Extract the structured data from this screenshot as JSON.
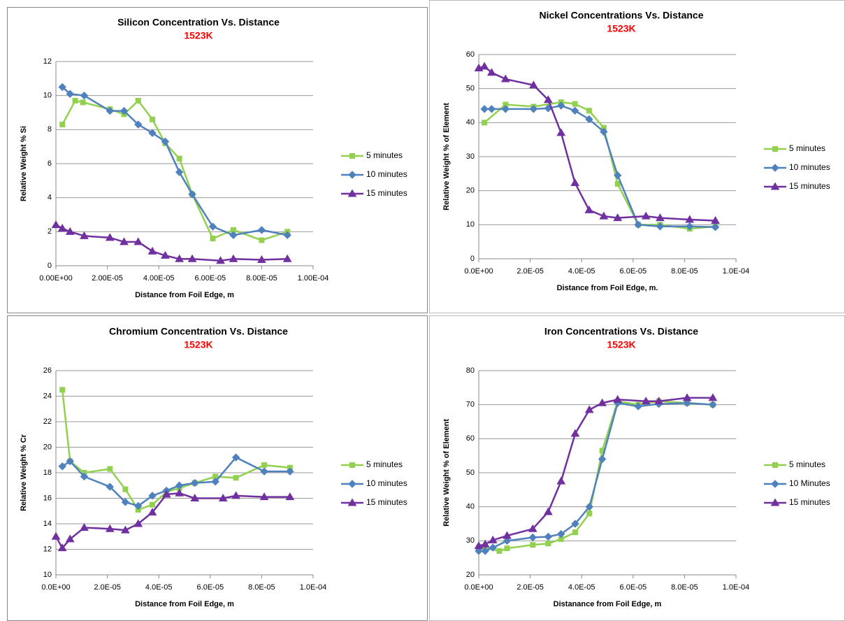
{
  "chart_data": [
    {
      "type": "line",
      "title": "Silicon Concentration Vs. Distance",
      "subtitle": "1523K",
      "x_label": "Distance from Foil Edge, m",
      "y_label": "Relative Weight % Si",
      "xlim": [
        0,
        0.0001
      ],
      "xticks": [
        {
          "value": 0,
          "label": "0.00E+00"
        },
        {
          "value": 2e-05,
          "label": "2.00E-05"
        },
        {
          "value": 4e-05,
          "label": "4.00E-05"
        },
        {
          "value": 6e-05,
          "label": "6.00E-05"
        },
        {
          "value": 8e-05,
          "label": "8.00E-05"
        },
        {
          "value": 0.0001,
          "label": "1.00E-04"
        }
      ],
      "ylim": [
        0,
        12
      ],
      "yticks": [
        0,
        2,
        4,
        6,
        8,
        10,
        12
      ],
      "grid": true,
      "series": [
        {
          "name": "5 minutes",
          "color": "#92d050",
          "marker": "square",
          "x": [
            2.5e-06,
            7.5e-06,
            1.05e-05,
            2.1e-05,
            2.65e-05,
            3.2e-05,
            3.75e-05,
            4.25e-05,
            4.8e-05,
            5.3e-05,
            6.1e-05,
            6.9e-05,
            8e-05,
            9e-05
          ],
          "values": [
            8.3,
            9.7,
            9.6,
            9.2,
            8.9,
            9.7,
            8.6,
            7.2,
            6.3,
            4.2,
            1.6,
            2.1,
            1.5,
            2.0
          ]
        },
        {
          "name": "10 minutes",
          "color": "#4f81bd",
          "marker": "diamond",
          "x": [
            2.5e-06,
            5.5e-06,
            1.1e-05,
            2.1e-05,
            2.65e-05,
            3.2e-05,
            3.75e-05,
            4.25e-05,
            4.8e-05,
            5.3e-05,
            6.1e-05,
            6.9e-05,
            8e-05,
            9e-05
          ],
          "values": [
            10.5,
            10.1,
            10.0,
            9.1,
            9.1,
            8.3,
            7.8,
            7.3,
            5.5,
            4.2,
            2.3,
            1.8,
            2.1,
            1.8
          ]
        },
        {
          "name": "15 minutes",
          "color": "#7030a0",
          "marker": "triangle",
          "x": [
            0,
            2.5e-06,
            5.5e-06,
            1.1e-05,
            2.1e-05,
            2.65e-05,
            3.2e-05,
            3.75e-05,
            4.25e-05,
            4.8e-05,
            5.3e-05,
            6.4e-05,
            6.9e-05,
            8e-05,
            9e-05
          ],
          "values": [
            2.4,
            2.2,
            2.0,
            1.75,
            1.65,
            1.4,
            1.4,
            0.85,
            0.6,
            0.4,
            0.4,
            0.3,
            0.4,
            0.35,
            0.4
          ]
        }
      ]
    },
    {
      "type": "line",
      "title": "Nickel Concentrations Vs. Distance",
      "subtitle": "1523K",
      "x_label": "Distance from Foil Edge, m.",
      "y_label": "Relative Weight % of Element",
      "xlim": [
        0,
        0.0001
      ],
      "xticks": [
        {
          "value": 0,
          "label": "0.0E+00"
        },
        {
          "value": 2e-05,
          "label": "2.0E-05"
        },
        {
          "value": 4e-05,
          "label": "4.0E-05"
        },
        {
          "value": 6e-05,
          "label": "6.0E-05"
        },
        {
          "value": 8e-05,
          "label": "8.0E-05"
        },
        {
          "value": 0.0001,
          "label": "1.0E-04"
        }
      ],
      "ylim": [
        0,
        60
      ],
      "yticks": [
        0,
        10,
        20,
        30,
        40,
        50,
        60
      ],
      "grid": true,
      "series": [
        {
          "name": "5 minutes",
          "color": "#92d050",
          "marker": "square",
          "x": [
            2.2e-06,
            1.04e-05,
            2.13e-05,
            3.2e-05,
            3.74e-05,
            4.29e-05,
            4.86e-05,
            5.4e-05,
            6.2e-05,
            7.05e-05,
            8.2e-05,
            9.2e-05
          ],
          "values": [
            40,
            45.3,
            44.7,
            46,
            45.5,
            43.5,
            38.5,
            22,
            10,
            10,
            8.8,
            9.5
          ]
        },
        {
          "name": "10 minutes",
          "color": "#4f81bd",
          "marker": "diamond",
          "x": [
            2.2e-06,
            5e-06,
            1.04e-05,
            2.13e-05,
            2.7e-05,
            3.2e-05,
            3.74e-05,
            4.29e-05,
            4.86e-05,
            5.4e-05,
            6.2e-05,
            7.05e-05,
            8.2e-05,
            9.2e-05
          ],
          "values": [
            44,
            44,
            44,
            44,
            44.2,
            45,
            43.5,
            41,
            37.3,
            24.5,
            10,
            9.5,
            9.5,
            9.3
          ]
        },
        {
          "name": "15 minutes",
          "color": "#7030a0",
          "marker": "triangle",
          "x": [
            0,
            2.2e-06,
            5e-06,
            1.04e-05,
            2.13e-05,
            2.7e-05,
            3.2e-05,
            3.74e-05,
            4.29e-05,
            4.86e-05,
            5.4e-05,
            6.5e-05,
            7.05e-05,
            8.2e-05,
            9.2e-05
          ],
          "values": [
            56,
            56.5,
            54.7,
            52.8,
            51,
            46.7,
            37,
            22.3,
            14.3,
            12.5,
            12,
            12.5,
            12,
            11.5,
            11.2
          ]
        }
      ]
    },
    {
      "type": "line",
      "title": "Chromium Concentration Vs. Distance",
      "subtitle": "1523K",
      "x_label": "Distance from Foil Edge, m",
      "y_label": "Relative Weight % Cr",
      "xlim": [
        0,
        0.0001
      ],
      "xticks": [
        {
          "value": 0,
          "label": "0.0E+00"
        },
        {
          "value": 2e-05,
          "label": "2.0E-05"
        },
        {
          "value": 4e-05,
          "label": "4.0E-05"
        },
        {
          "value": 6e-05,
          "label": "6.0E-05"
        },
        {
          "value": 8e-05,
          "label": "8.0E-05"
        },
        {
          "value": 0.0001,
          "label": "1.0E-04"
        }
      ],
      "ylim": [
        10,
        26
      ],
      "yticks": [
        10,
        12,
        14,
        16,
        18,
        20,
        22,
        24,
        26
      ],
      "grid": true,
      "series": [
        {
          "name": "5 minutes",
          "color": "#92d050",
          "marker": "square",
          "x": [
            2.5e-06,
            5.5e-06,
            1.1e-05,
            2.1e-05,
            2.7e-05,
            3.2e-05,
            3.75e-05,
            4.3e-05,
            4.8e-05,
            5.4e-05,
            6.2e-05,
            7e-05,
            8.1e-05,
            9.1e-05
          ],
          "values": [
            24.5,
            18.9,
            18.0,
            18.3,
            16.7,
            15.1,
            15.5,
            16.5,
            16.8,
            17.2,
            17.7,
            17.6,
            18.6,
            18.4
          ]
        },
        {
          "name": "10 minutes",
          "color": "#4f81bd",
          "marker": "diamond",
          "x": [
            2.5e-06,
            5.5e-06,
            1.1e-05,
            2.1e-05,
            2.7e-05,
            3.2e-05,
            3.75e-05,
            4.3e-05,
            4.8e-05,
            5.4e-05,
            6.2e-05,
            7e-05,
            8.1e-05,
            9.1e-05
          ],
          "values": [
            18.5,
            18.9,
            17.7,
            16.9,
            15.7,
            15.4,
            16.2,
            16.6,
            17.0,
            17.2,
            17.3,
            19.2,
            18.1,
            18.1
          ]
        },
        {
          "name": "15 minutes",
          "color": "#7030a0",
          "marker": "triangle",
          "x": [
            0,
            2.5e-06,
            5.5e-06,
            1.1e-05,
            2.1e-05,
            2.7e-05,
            3.2e-05,
            3.75e-05,
            4.3e-05,
            4.8e-05,
            5.4e-05,
            6.5e-05,
            7e-05,
            8.1e-05,
            9.1e-05
          ],
          "values": [
            13.0,
            12.1,
            12.8,
            13.7,
            13.6,
            13.5,
            14.0,
            14.9,
            16.3,
            16.4,
            16.0,
            16.0,
            16.2,
            16.1,
            16.1
          ]
        }
      ]
    },
    {
      "type": "line",
      "title": "Iron Concentrations Vs. Distance",
      "subtitle": "1523K",
      "x_label": "Distanance from Foil Edge, m",
      "y_label": "Relative Weight % of Element",
      "xlim": [
        0,
        0.0001
      ],
      "xticks": [
        {
          "value": 0,
          "label": "0.0E+00"
        },
        {
          "value": 2e-05,
          "label": "2.0E-05"
        },
        {
          "value": 4e-05,
          "label": "4.0E-05"
        },
        {
          "value": 6e-05,
          "label": "6.0E-05"
        },
        {
          "value": 8e-05,
          "label": "8.0E-05"
        },
        {
          "value": 0.0001,
          "label": "1.0E-04"
        }
      ],
      "ylim": [
        20,
        80
      ],
      "yticks": [
        20,
        30,
        40,
        50,
        60,
        70,
        80
      ],
      "grid": true,
      "series": [
        {
          "name": "5 minutes",
          "color": "#92d050",
          "marker": "square",
          "x": [
            0,
            2.5e-06,
            8e-06,
            1.1e-05,
            2.1e-05,
            2.7e-05,
            3.2e-05,
            3.75e-05,
            4.3e-05,
            4.8e-05,
            5.4e-05,
            6.2e-05,
            7e-05,
            8.1e-05,
            9.1e-05
          ],
          "values": [
            28,
            28,
            27,
            27.8,
            28.8,
            29.2,
            30.5,
            32.5,
            38,
            56.5,
            71,
            70,
            71,
            70.5,
            70
          ]
        },
        {
          "name": "10 Minutes",
          "color": "#4f81bd",
          "marker": "diamond",
          "x": [
            0,
            2.5e-06,
            5.5e-06,
            1.1e-05,
            2.1e-05,
            2.7e-05,
            3.2e-05,
            3.75e-05,
            4.3e-05,
            4.8e-05,
            5.4e-05,
            6.2e-05,
            7e-05,
            8.1e-05,
            9.1e-05
          ],
          "values": [
            27,
            27,
            28,
            30,
            31,
            31.2,
            32,
            35,
            40,
            54,
            70.5,
            69.5,
            70.2,
            70.5,
            70
          ]
        },
        {
          "name": "15 minutes",
          "color": "#7030a0",
          "marker": "triangle",
          "x": [
            0,
            2.5e-06,
            5.5e-06,
            1.1e-05,
            2.1e-05,
            2.7e-05,
            3.2e-05,
            3.75e-05,
            4.3e-05,
            4.8e-05,
            5.4e-05,
            6.5e-05,
            7e-05,
            8.1e-05,
            9.1e-05
          ],
          "values": [
            28.5,
            29,
            30.2,
            31.5,
            33.5,
            38.5,
            47.5,
            61.5,
            68.5,
            70.5,
            71.5,
            71,
            71,
            72,
            72
          ]
        }
      ]
    }
  ]
}
